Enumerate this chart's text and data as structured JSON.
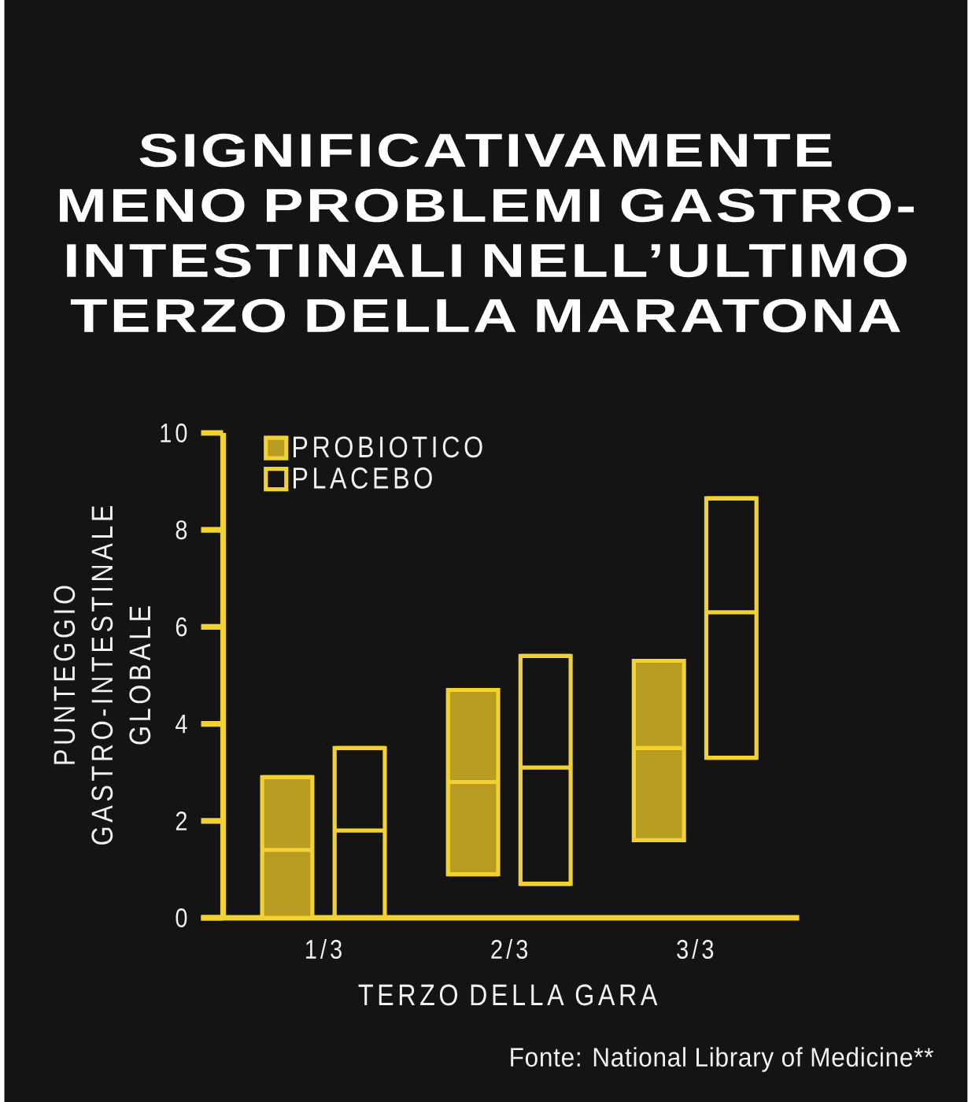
{
  "chart_data": {
    "type": "box",
    "title": "SIGNIFICATIVAMENTE MENO PROBLEMI GASTRO-INTESTINALI NELL’ULTIMO TERZO DELLA MARATONA",
    "xlabel": "TERZO DELLA GARA",
    "ylabel": "PUNTEGGIO GASTRO-INTESTINALE GLOBALE",
    "categories": [
      "1/3",
      "2/3",
      "3/3"
    ],
    "series": [
      {
        "name": "PROBIOTICO",
        "color": "#b89c22",
        "boxes": [
          {
            "low": 0,
            "q1": 0,
            "median": 1.4,
            "q3": 2.9,
            "high": 2.9
          },
          {
            "low": 0.9,
            "q1": 0.9,
            "median": 2.8,
            "q3": 4.7,
            "high": 4.7
          },
          {
            "low": 1.6,
            "q1": 1.6,
            "median": 3.5,
            "q3": 5.3,
            "high": 5.3
          }
        ]
      },
      {
        "name": "PLACEBO",
        "color": "#f2d230",
        "boxes": [
          {
            "low": 0,
            "q1": 0,
            "median": 1.8,
            "q3": 3.5,
            "high": 3.5
          },
          {
            "low": 0.7,
            "q1": 0.7,
            "median": 3.1,
            "q3": 5.4,
            "high": 5.4
          },
          {
            "low": 3.3,
            "q1": 3.3,
            "median": 6.3,
            "q3": 8.65,
            "high": 8.65
          }
        ]
      }
    ],
    "ylim": [
      0,
      10
    ],
    "yticks": [
      0,
      2,
      4,
      6,
      8,
      10
    ],
    "legend": "top left",
    "annotations": [
      "Fonte: National Library of Medicine**"
    ]
  }
}
